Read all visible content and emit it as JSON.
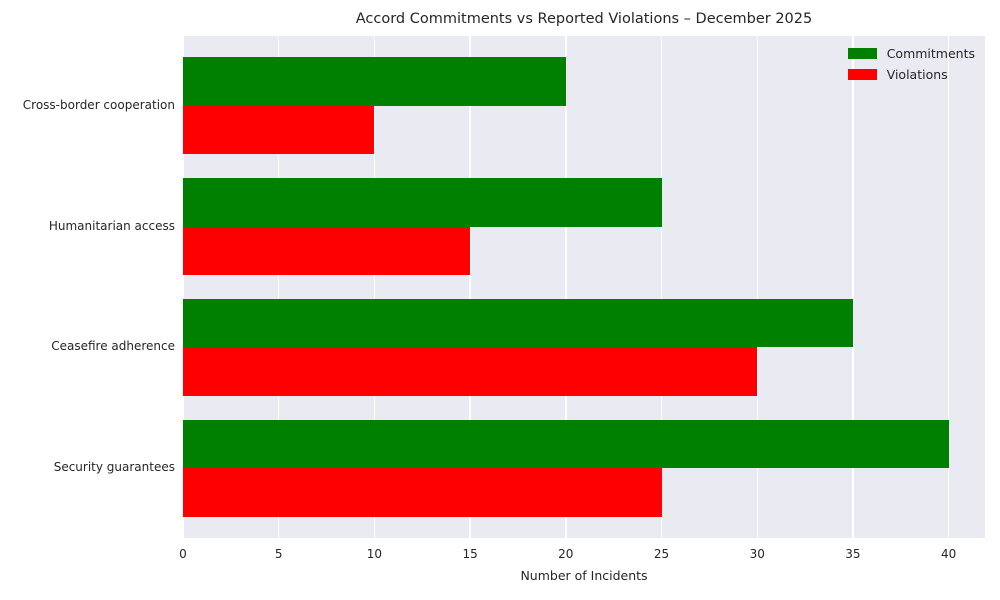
{
  "chart_data": {
    "type": "bar",
    "orientation": "horizontal",
    "title": "Accord Commitments vs Reported Violations – December 2025",
    "categories": [
      "Cross-border cooperation",
      "Humanitarian access",
      "Ceasefire adherence",
      "Security guarantees"
    ],
    "series": [
      {
        "name": "Commitments",
        "color": "#008000",
        "values": [
          20,
          25,
          35,
          40
        ]
      },
      {
        "name": "Violations",
        "color": "#ff0000",
        "values": [
          10,
          15,
          30,
          25
        ]
      }
    ],
    "xlabel": "Number of Incidents",
    "ylabel": "",
    "xticks": [
      0,
      5,
      10,
      15,
      20,
      25,
      30,
      35,
      40
    ],
    "xlim": [
      0,
      41.9
    ],
    "grid": true,
    "legend_position": "upper-right",
    "colors": {
      "plot_background": "#eaeaf2",
      "grid": "#ffffff",
      "text": "#262626",
      "figure_background": "#ffffff"
    }
  }
}
